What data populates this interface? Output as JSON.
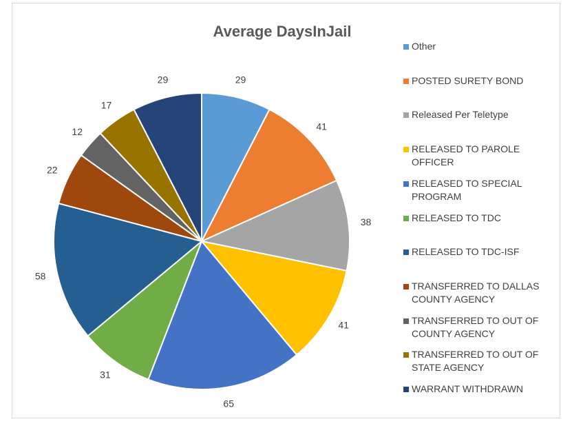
{
  "chart_data": {
    "type": "pie",
    "title": "Average DaysInJail",
    "categories": [
      "Other",
      "POSTED SURETY BOND",
      "Released Per Teletype",
      "RELEASED TO PAROLE OFFICER",
      "RELEASED TO SPECIAL PROGRAM",
      "RELEASED TO TDC",
      "RELEASED TO TDC-ISF",
      "TRANSFERRED TO DALLAS COUNTY AGENCY",
      "TRANSFERRED TO OUT OF COUNTY AGENCY",
      "TRANSFERRED TO OUT OF STATE AGENCY",
      "WARRANT WITHDRAWN"
    ],
    "values": [
      29,
      41,
      38,
      41,
      65,
      31,
      58,
      22,
      12,
      17,
      29
    ],
    "colors": [
      "#5b9bd5",
      "#ed7d31",
      "#a5a5a5",
      "#ffc000",
      "#4472c4",
      "#70ad47",
      "#255e91",
      "#9e480e",
      "#636363",
      "#997300",
      "#264478"
    ],
    "legend": "right"
  }
}
